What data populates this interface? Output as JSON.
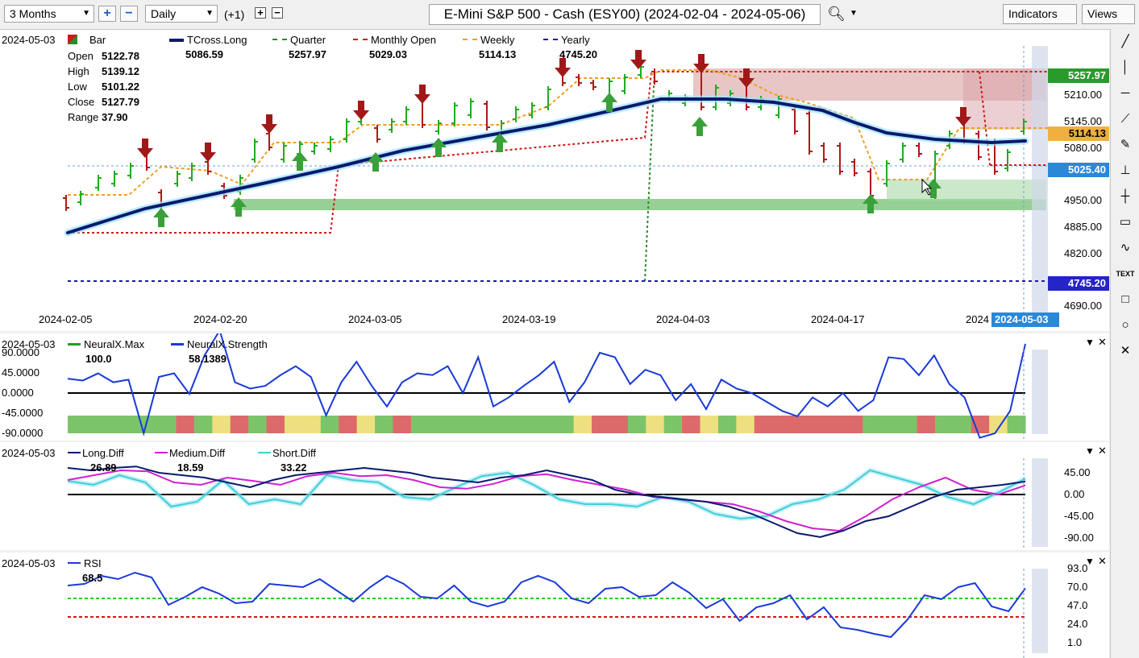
{
  "toolbar": {
    "range": "3 Months",
    "interval": "Daily",
    "offset": "(+1)",
    "title": "E-Mini S&P 500 - Cash (ESY00) (2024-02-04 - 2024-05-06)",
    "indicators_label": "Indicators",
    "views_label": "Views"
  },
  "main": {
    "date": "2024-05-03",
    "legend": [
      {
        "name": "Bar",
        "value": "",
        "color": "#2b8a2b"
      },
      {
        "name": "TCross.Long",
        "value": "5086.59",
        "color": "#0a1a6e"
      },
      {
        "name": "Quarter",
        "value": "5257.97",
        "color": "#2a8a2a"
      },
      {
        "name": "Monthly Open",
        "value": "5029.03",
        "color": "#d01818"
      },
      {
        "name": "Weekly",
        "value": "5114.13",
        "color": "#f0a020"
      },
      {
        "name": "Yearly",
        "value": "4745.20",
        "color": "#1a1aaa"
      }
    ],
    "ohlc": [
      {
        "k": "Open",
        "v": "5122.78"
      },
      {
        "k": "High",
        "v": "5139.12"
      },
      {
        "k": "Low",
        "v": "5101.22"
      },
      {
        "k": "Close",
        "v": "5127.79"
      },
      {
        "k": "Range",
        "v": "37.90"
      }
    ],
    "y_ticks": [
      "5210.00",
      "5145.00",
      "5080.00",
      "4950.00",
      "4885.00",
      "4820.00",
      "4690.00"
    ],
    "x_ticks": [
      "2024-02-05",
      "2024-02-20",
      "2024-03-05",
      "2024-03-19",
      "2024-04-03",
      "2024-04-17",
      "2024"
    ],
    "cursor_date": "2024-05-03",
    "price_tags": [
      {
        "text": "5257.97",
        "bg": "#2a9a2a",
        "fg": "#ffffff"
      },
      {
        "text": "5114.13",
        "bg": "#f0b040",
        "fg": "#000000"
      },
      {
        "text": "5025.40",
        "bg": "#2a88d8",
        "fg": "#ffffff"
      },
      {
        "text": "4745.20",
        "bg": "#2424c8",
        "fg": "#ffffff"
      }
    ]
  },
  "neural": {
    "date": "2024-05-03",
    "legend": [
      {
        "name": "NeuralX.Max",
        "value": "100.0"
      },
      {
        "name": "NeuralX.Strength",
        "value": "58.1389"
      }
    ],
    "y_ticks": [
      "90.0000",
      "45.0000",
      "0.0000",
      "-45.0000",
      "-90.0000"
    ]
  },
  "diff": {
    "date": "2024-05-03",
    "legend": [
      {
        "name": "Long.Diff",
        "value": "26.89"
      },
      {
        "name": "Medium.Diff",
        "value": "18.59"
      },
      {
        "name": "Short.Diff",
        "value": "33.22"
      }
    ],
    "y_ticks": [
      "45.00",
      "0.00",
      "-45.00",
      "-90.00"
    ]
  },
  "rsi": {
    "date": "2024-05-03",
    "legend": [
      {
        "name": "RSI",
        "value": "68.5"
      }
    ],
    "y_ticks": [
      "93.0",
      "70.0",
      "47.0",
      "24.0",
      "1.0"
    ]
  },
  "chart_data": {
    "type": "line",
    "title": "E-Mini S&P 500 - Cash (ESY00) (2024-02-04 - 2024-05-06)",
    "xlabel": "",
    "ylabel": "",
    "series": [
      {
        "name": "TCross.Long",
        "values": [
          4870,
          4900,
          4935,
          4960,
          5000,
          5040,
          5080,
          5115,
          5150,
          5175,
          5205,
          5205,
          5195,
          5165,
          5110,
          5086
        ]
      },
      {
        "name": "NeuralX.Strength",
        "values": [
          20,
          30,
          -45,
          25,
          70,
          -10,
          40,
          -40,
          45,
          35,
          -20,
          40,
          -30,
          40,
          -50,
          58
        ]
      },
      {
        "name": "RSI",
        "values": [
          74,
          86,
          52,
          75,
          53,
          84,
          55,
          82,
          57,
          74,
          47,
          56,
          20,
          14,
          62,
          68.5
        ]
      }
    ],
    "levels": [
      {
        "name": "Quarter",
        "value": 5257.97
      },
      {
        "name": "Monthly Open",
        "value": 5029.03
      },
      {
        "name": "Weekly",
        "value": 5114.13
      },
      {
        "name": "Yearly",
        "value": 4745.2
      }
    ]
  }
}
